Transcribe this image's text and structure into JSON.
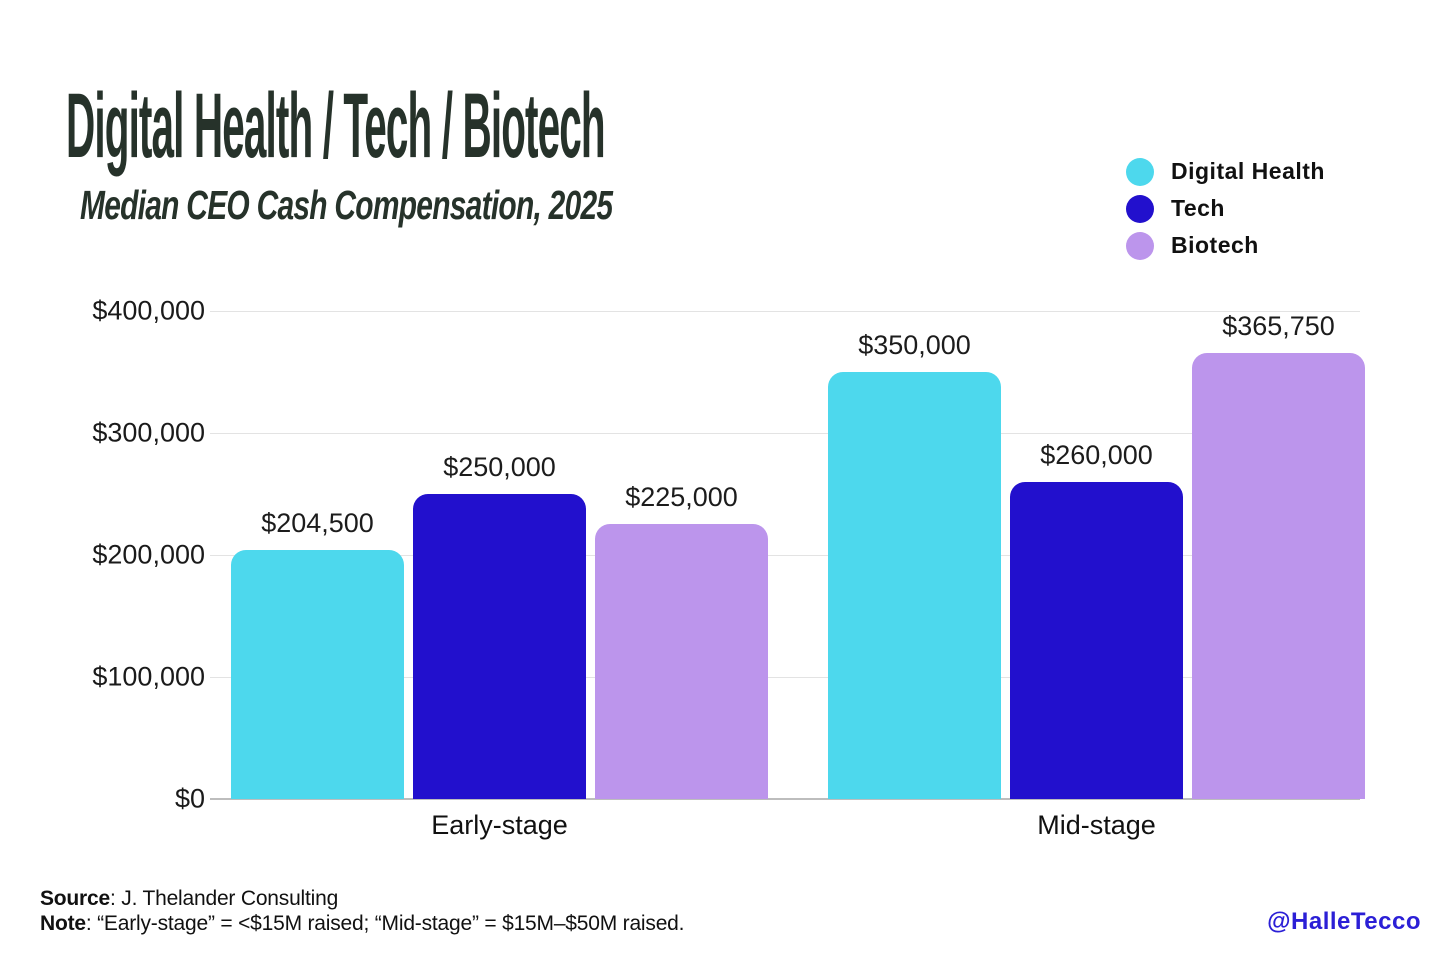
{
  "header": {
    "title": "Digital Health / Tech / Biotech",
    "subtitle": "Median CEO Cash Compensation, 2025"
  },
  "chart_data": {
    "type": "bar",
    "title": "Digital Health / Tech / Biotech",
    "subtitle": "Median CEO Cash Compensation, 2025",
    "categories": [
      "Early-stage",
      "Mid-stage"
    ],
    "series": [
      {
        "name": "Digital Health",
        "color": "#4dd8ed",
        "values": [
          204500,
          350000
        ],
        "labels": [
          "$204,500",
          "$350,000"
        ]
      },
      {
        "name": "Tech",
        "color": "#2210cd",
        "values": [
          250000,
          260000
        ],
        "labels": [
          "$250,000",
          "$260,000"
        ]
      },
      {
        "name": "Biotech",
        "color": "#bc95ec",
        "values": [
          225000,
          365750
        ],
        "labels": [
          "$225,000",
          "$365,750"
        ]
      }
    ],
    "ylim": [
      0,
      400000
    ],
    "y_ticks": [
      {
        "value": 400000,
        "label": "$400,000"
      },
      {
        "value": 300000,
        "label": "$300,000"
      },
      {
        "value": 200000,
        "label": "$200,000"
      },
      {
        "value": 100000,
        "label": "$100,000"
      },
      {
        "value": 0,
        "label": "$0"
      }
    ],
    "grid": true,
    "legend_position": "top-right"
  },
  "footer": {
    "source_label": "Source",
    "source_text": ": J. Thelander Consulting",
    "note_label": "Note",
    "note_text": ": “Early-stage” = <$15M raised; “Mid-stage” = $15M–$50M raised.",
    "handle": "@HalleTecco"
  },
  "colors": {
    "title_text": "#26322a",
    "handle_text": "#2b1fd6",
    "digital_health": "#4dd8ed",
    "tech": "#2210cd",
    "biotech": "#bc95ec",
    "gridline": "#e3e3e3",
    "axis_line": "#bdbdbd"
  }
}
